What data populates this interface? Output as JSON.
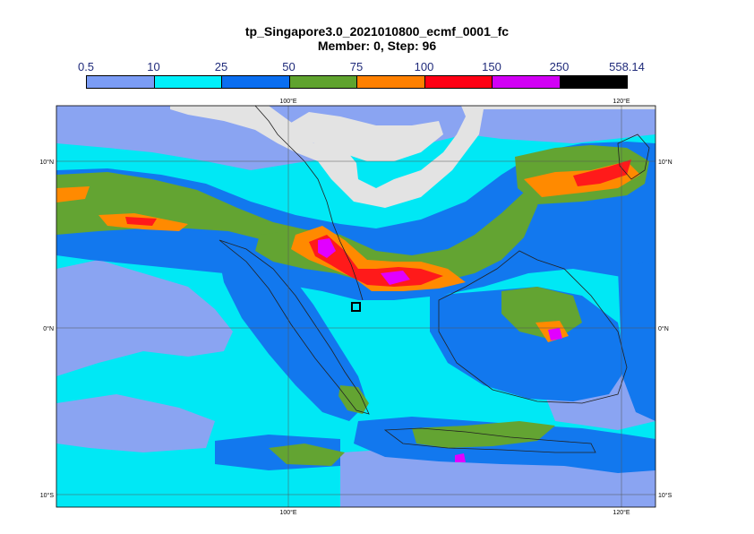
{
  "title": "tp_Singapore3.0_2021010800_ecmf_0001_fc",
  "subtitle": "Member: 0, Step: 96",
  "colorbar": {
    "ticks": [
      "0.5",
      "10",
      "25",
      "50",
      "75",
      "100",
      "150",
      "250",
      "558.14"
    ],
    "colors": [
      "#7b9cf5",
      "#00f0fa",
      "#0a6ef0",
      "#5fa32e",
      "#ff8000",
      "#ff0014",
      "#d200f5",
      "#000000"
    ]
  },
  "map": {
    "lon_labels": [
      "100°E",
      "120°E"
    ],
    "lat_labels": [
      "10°N",
      "0°N",
      "10°S"
    ],
    "colors": {
      "ocean": "#00e8f5",
      "land_dry": "#e3e3e3",
      "light": "#8aa4f2",
      "medium": "#1278ee",
      "heavy": "#63a432",
      "very_heavy": "#ff8a00",
      "extreme": "#ff1a1a",
      "intense": "#e100ff"
    }
  }
}
